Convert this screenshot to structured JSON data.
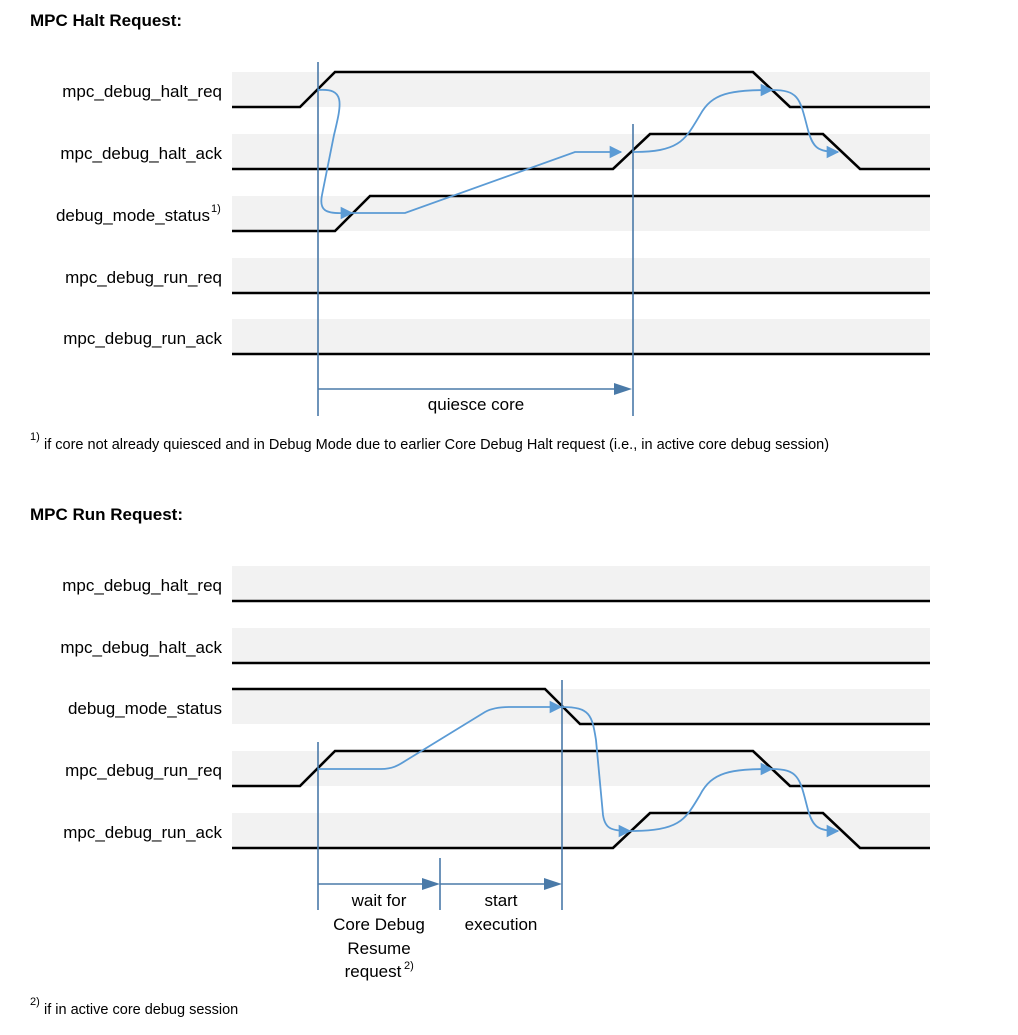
{
  "halt_section": {
    "title": "MPC Halt Request:",
    "signals": [
      {
        "name": "mpc_debug_halt_req"
      },
      {
        "name": "mpc_debug_halt_ack"
      },
      {
        "name": "debug_mode_status",
        "sup": "1)"
      },
      {
        "name": "mpc_debug_run_req"
      },
      {
        "name": "mpc_debug_run_ack"
      }
    ],
    "interval_label": "quiesce core",
    "footnote_marker": "1)",
    "footnote": "if core not already quiesced and in Debug Mode due to earlier Core Debug Halt request (i.e., in active core debug session)"
  },
  "run_section": {
    "title": "MPC Run Request:",
    "signals": [
      {
        "name": "mpc_debug_halt_req"
      },
      {
        "name": "mpc_debug_halt_ack"
      },
      {
        "name": "debug_mode_status"
      },
      {
        "name": "mpc_debug_run_req"
      },
      {
        "name": "mpc_debug_run_ack"
      }
    ],
    "interval1_lines": [
      "wait for",
      "Core Debug",
      "Resume",
      "request"
    ],
    "interval1_sup": "2)",
    "interval2_lines": [
      "start",
      "execution"
    ],
    "footnote_marker": "2)",
    "footnote": "if in active core debug session"
  },
  "colors": {
    "band": "#f2f2f2",
    "wave": "#000000",
    "marker": "#4a7aa8",
    "flow": "#5b9bd5"
  }
}
